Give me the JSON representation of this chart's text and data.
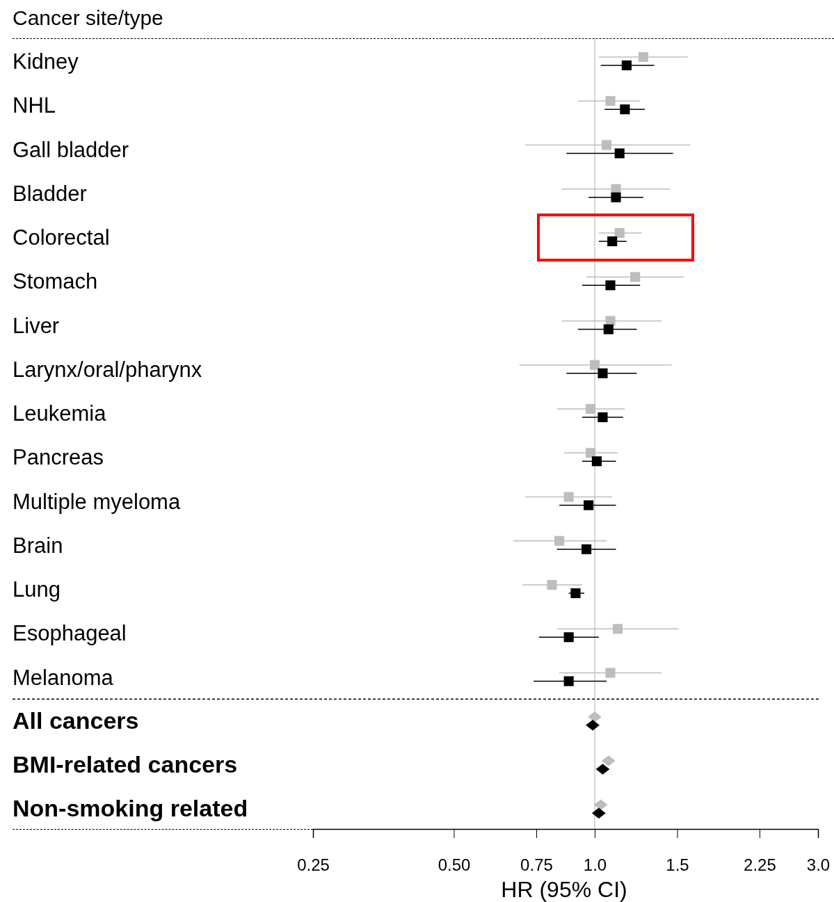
{
  "chart_data": {
    "type": "scatter",
    "orientation": "horizontal",
    "ylabel": "Cancer site/type",
    "xlabel": "HR (95% CI)",
    "categories": [
      "Kidney",
      "NHL",
      "Gall bladder",
      "Bladder",
      "Colorectal",
      "Stomach",
      "Liver",
      "Larynx/oral/pharynx",
      "Leukemia",
      "Pancreas",
      "Multiple myeloma",
      "Brain",
      "Lung",
      "Esophageal",
      "Melanoma",
      "All cancers",
      "BMI-related cancers",
      "Non-smoking related"
    ],
    "log": "x",
    "xlim": [
      0.25,
      3.0
    ],
    "xticks": [
      0.25,
      {
        "value": 0.5,
        "label": "0.50"
      },
      0.75,
      {
        "value": 1.0,
        "label": "1.0"
      },
      1.5,
      2.25,
      {
        "value": 3.0,
        "label": "3.0"
      }
    ],
    "grid": false,
    "ref_lines": [
      {
        "axis": "x",
        "value": 1.0,
        "color": "#c8c8c8",
        "line_style": "solid"
      },
      {
        "axis": "y",
        "value": "All cancers",
        "color": "#000000",
        "line_style": "dashed"
      }
    ],
    "series": [
      {
        "color": "#bdbdbd",
        "marker": "square",
        "values": [
          1.27,
          1.08,
          1.06,
          1.11,
          1.13,
          1.22,
          1.08,
          1.0,
          0.98,
          0.98,
          0.88,
          0.84,
          0.81,
          1.12,
          1.08,
          null,
          null,
          null
        ],
        "errors": [
          [
            1.02,
            1.58
          ],
          [
            0.92,
            1.25
          ],
          [
            0.71,
            1.6
          ],
          [
            0.85,
            1.45
          ],
          [
            1.02,
            1.26
          ],
          [
            0.96,
            1.55
          ],
          [
            0.85,
            1.39
          ],
          [
            0.69,
            1.46
          ],
          [
            0.83,
            1.16
          ],
          [
            0.86,
            1.12
          ],
          [
            0.71,
            1.09
          ],
          [
            0.67,
            1.06
          ],
          [
            0.7,
            0.94
          ],
          [
            0.83,
            1.51
          ],
          [
            0.84,
            1.39
          ],
          null,
          null,
          null
        ]
      },
      {
        "color": "#000000",
        "marker": "square",
        "values": [
          1.17,
          1.16,
          1.13,
          1.11,
          1.09,
          1.08,
          1.07,
          1.04,
          1.04,
          1.01,
          0.97,
          0.96,
          0.91,
          0.88,
          0.88,
          null,
          null,
          null
        ],
        "errors": [
          [
            1.03,
            1.34
          ],
          [
            1.05,
            1.28
          ],
          [
            0.87,
            1.47
          ],
          [
            0.97,
            1.27
          ],
          [
            1.02,
            1.17
          ],
          [
            0.94,
            1.25
          ],
          [
            0.92,
            1.23
          ],
          [
            0.87,
            1.23
          ],
          [
            0.94,
            1.15
          ],
          [
            0.94,
            1.11
          ],
          [
            0.84,
            1.11
          ],
          [
            0.83,
            1.11
          ],
          [
            0.88,
            0.95
          ],
          [
            0.76,
            1.02
          ],
          [
            0.74,
            1.06
          ],
          null,
          null,
          null
        ]
      },
      {
        "color": "#bdbdbd",
        "marker": "diamond",
        "values": [
          null,
          null,
          null,
          null,
          null,
          null,
          null,
          null,
          null,
          null,
          null,
          null,
          null,
          null,
          null,
          1.0,
          1.07,
          1.03
        ]
      },
      {
        "color": "#000000",
        "marker": "diamond",
        "values": [
          null,
          null,
          null,
          null,
          null,
          null,
          null,
          null,
          null,
          null,
          null,
          null,
          null,
          null,
          null,
          0.99,
          1.04,
          1.02
        ]
      }
    ]
  }
}
